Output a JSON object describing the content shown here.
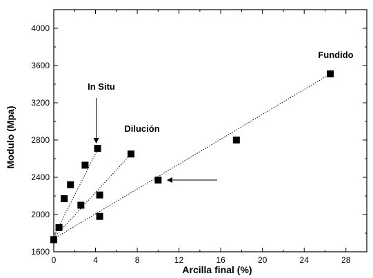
{
  "chart_data": {
    "type": "scatter",
    "title": "",
    "xlabel": "Arcilla final (%)",
    "ylabel": "Modulo (Mpa)",
    "xlim": [
      0,
      30
    ],
    "ylim": [
      1600,
      4200
    ],
    "x_ticks": [
      0,
      4,
      8,
      12,
      16,
      20,
      24,
      28
    ],
    "y_ticks": [
      1600,
      2000,
      2400,
      2800,
      3200,
      3600,
      4000
    ],
    "grid": false,
    "marker": "square",
    "marker_color": "#000000",
    "trendline_style": "dotted",
    "series": [
      {
        "name": "In Situ",
        "x": [
          0,
          0.5,
          1.0,
          1.6,
          3.0,
          4.2
        ],
        "y": [
          1730,
          1860,
          2170,
          2320,
          2530,
          2710
        ],
        "trend": {
          "x": [
            0,
            4.2
          ],
          "y": [
            1760,
            2700
          ]
        }
      },
      {
        "name": "Dilución",
        "x": [
          0,
          2.6,
          4.4,
          7.4
        ],
        "y": [
          1730,
          2100,
          2210,
          2650
        ],
        "trend": {
          "x": [
            0,
            7.4
          ],
          "y": [
            1750,
            2650
          ]
        }
      },
      {
        "name": "Fundido",
        "x": [
          0,
          4.4,
          10.0,
          17.5,
          26.5
        ],
        "y": [
          1730,
          1980,
          2370,
          2800,
          3510
        ],
        "trend": {
          "x": [
            0,
            26.5
          ],
          "y": [
            1740,
            3510
          ]
        }
      }
    ],
    "annotations": [
      {
        "text": "In Situ",
        "arrow_to": {
          "x": 4.0,
          "y": 2770
        }
      },
      {
        "text": "Dilución"
      },
      {
        "text": "Fundido"
      },
      {
        "text": "",
        "arrow_to": {
          "x": 10.9,
          "y": 2370
        }
      }
    ]
  }
}
